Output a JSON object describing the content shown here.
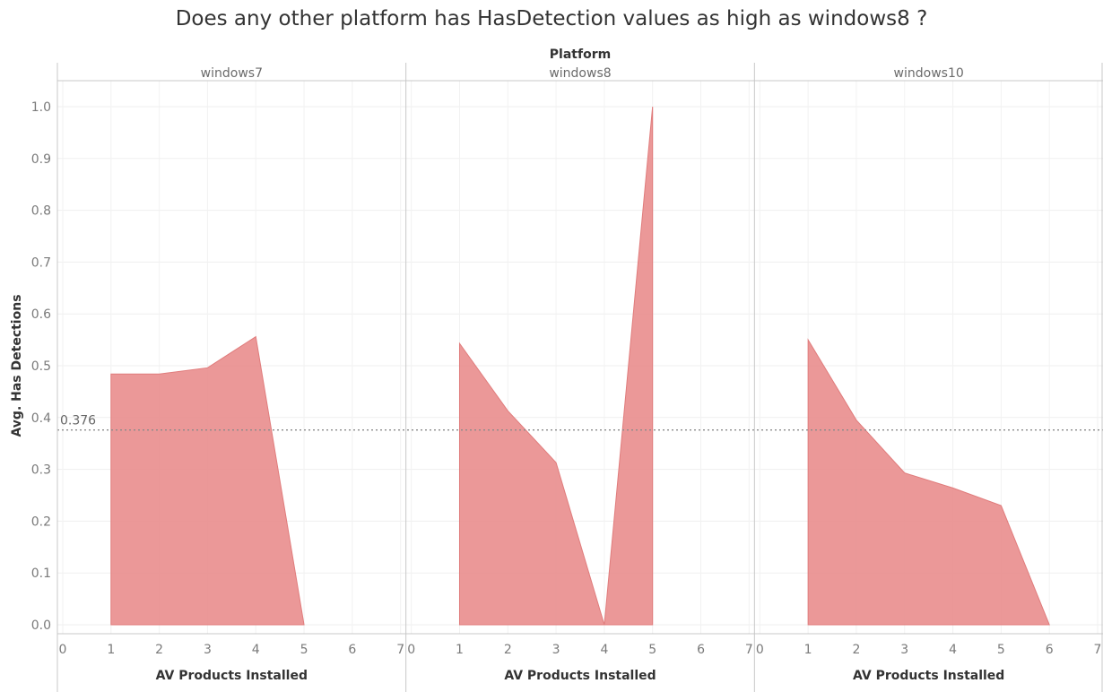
{
  "chart_data": {
    "type": "area",
    "title": "Does any other platform has HasDetection values as high as windows8 ?",
    "facet_header": "Platform",
    "xlabel": "AV Products Installed",
    "ylabel": "Avg. Has Detections",
    "xlim": [
      0,
      7
    ],
    "ylim": [
      0,
      1.0
    ],
    "x_ticks": [
      0,
      1,
      2,
      3,
      4,
      5,
      6,
      7
    ],
    "y_ticks": [
      0.0,
      0.1,
      0.2,
      0.3,
      0.4,
      0.5,
      0.6,
      0.7,
      0.8,
      0.9,
      1.0
    ],
    "y_tick_labels": [
      "0.0",
      "0.1",
      "0.2",
      "0.3",
      "0.4",
      "0.5",
      "0.6",
      "0.7",
      "0.8",
      "0.9",
      "1.0"
    ],
    "grid": true,
    "color": "#e88a8a",
    "reference_line": {
      "value": 0.376,
      "label": "0.376"
    },
    "panels": [
      {
        "name": "windows7",
        "x": [
          1,
          2,
          3,
          4,
          5
        ],
        "y": [
          0.484,
          0.484,
          0.496,
          0.556,
          0.0
        ]
      },
      {
        "name": "windows8",
        "x": [
          1,
          2,
          3,
          4,
          5
        ],
        "y": [
          0.543,
          0.413,
          0.313,
          0.0,
          1.0
        ]
      },
      {
        "name": "windows10",
        "x": [
          1,
          2,
          3,
          4,
          5,
          6
        ],
        "y": [
          0.55,
          0.395,
          0.293,
          0.264,
          0.23,
          0.0
        ]
      }
    ]
  }
}
